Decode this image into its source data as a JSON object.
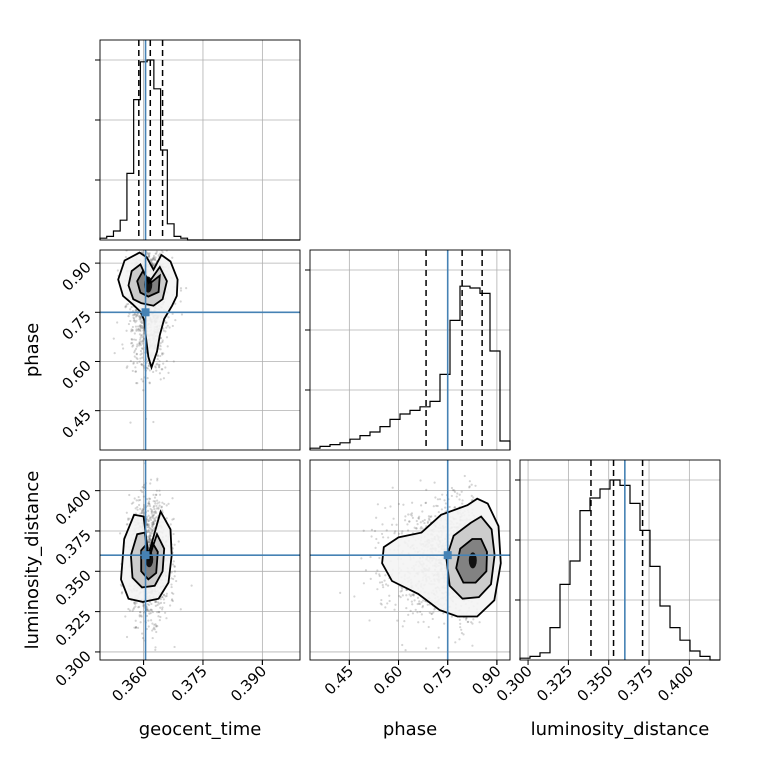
{
  "colors": {
    "truth": "#4682b4",
    "hist": "#000000",
    "grid": "#b0b0b0"
  },
  "chart_data": {
    "type": "corner",
    "grid": true,
    "parameters": [
      "geocent_time",
      "phase",
      "luminosity_distance"
    ],
    "truths": {
      "geocent_time": 0.3605,
      "phase": 0.75,
      "luminosity_distance": 0.36
    },
    "ranges": {
      "geocent_time": [
        0.349,
        0.3995
      ],
      "phase": [
        0.33,
        0.94
      ],
      "luminosity_distance": [
        0.295,
        0.419
      ]
    },
    "ticks": {
      "geocent_time": [
        0.36,
        0.375,
        0.39
      ],
      "phase": [
        0.45,
        0.6,
        0.75,
        0.9
      ],
      "luminosity_distance": [
        0.3,
        0.325,
        0.35,
        0.375,
        0.4
      ]
    },
    "tick_labels": {
      "geocent_time": [
        "0.360",
        "0.375",
        "0.390"
      ],
      "phase": [
        "0.45",
        "0.60",
        "0.75",
        "0.90"
      ],
      "luminosity_distance": [
        "0.300",
        "0.325",
        "0.350",
        "0.375",
        "0.400"
      ]
    },
    "marginal_quantiles": {
      "geocent_time": [
        0.3588,
        0.3617,
        0.3648
      ],
      "phase": [
        0.684,
        0.794,
        0.855
      ],
      "luminosity_distance": [
        0.339,
        0.353,
        0.371
      ]
    },
    "histograms": {
      "geocent_time": {
        "edges": [
          0.349,
          0.3507,
          0.3524,
          0.3541,
          0.3558,
          0.3575,
          0.3592,
          0.3609,
          0.3626,
          0.3643,
          0.366,
          0.3677,
          0.3694,
          0.3711,
          0.3728,
          0.3745,
          0.3762,
          0.3995
        ],
        "counts": [
          0.01,
          0.02,
          0.05,
          0.11,
          0.37,
          0.78,
          0.99,
          1.0,
          0.84,
          0.5,
          0.09,
          0.02,
          0.01,
          0.0,
          0.0,
          0.0,
          0.0
        ]
      },
      "phase": {
        "edges": [
          0.33,
          0.3605,
          0.391,
          0.4215,
          0.452,
          0.4825,
          0.513,
          0.5435,
          0.574,
          0.6045,
          0.635,
          0.6655,
          0.696,
          0.7265,
          0.757,
          0.7875,
          0.818,
          0.8485,
          0.879,
          0.9095,
          0.94
        ],
        "counts": [
          0.01,
          0.02,
          0.03,
          0.04,
          0.06,
          0.08,
          0.1,
          0.13,
          0.17,
          0.2,
          0.22,
          0.24,
          0.27,
          0.42,
          0.72,
          0.91,
          0.9,
          0.87,
          0.55,
          0.05
        ]
      },
      "luminosity_distance": {
        "edges": [
          0.295,
          0.3012,
          0.3074,
          0.3136,
          0.3198,
          0.326,
          0.3322,
          0.3384,
          0.3446,
          0.3508,
          0.357,
          0.3632,
          0.3694,
          0.3756,
          0.3818,
          0.388,
          0.3942,
          0.4004,
          0.4066,
          0.4128,
          0.419
        ],
        "counts": [
          0.01,
          0.02,
          0.04,
          0.18,
          0.42,
          0.55,
          0.83,
          0.9,
          0.95,
          1.0,
          0.97,
          0.87,
          0.72,
          0.52,
          0.3,
          0.18,
          0.11,
          0.05,
          0.02,
          0.0
        ]
      }
    },
    "joint": [
      {
        "x": "geocent_time",
        "y": "phase",
        "contours": [
          [
            [
              0.3625,
              0.88
            ],
            [
              0.3608,
              0.918
            ],
            [
              0.359,
              0.932
            ],
            [
              0.3552,
              0.908
            ],
            [
              0.3536,
              0.85
            ],
            [
              0.3548,
              0.8
            ],
            [
              0.3572,
              0.775
            ],
            [
              0.3592,
              0.752
            ],
            [
              0.3602,
              0.725
            ],
            [
              0.3605,
              0.685
            ],
            [
              0.3612,
              0.615
            ],
            [
              0.362,
              0.582
            ],
            [
              0.3634,
              0.63
            ],
            [
              0.3641,
              0.68
            ],
            [
              0.3652,
              0.73
            ],
            [
              0.3672,
              0.77
            ],
            [
              0.3684,
              0.8
            ],
            [
              0.3686,
              0.85
            ],
            [
              0.3668,
              0.905
            ],
            [
              0.3645,
              0.925
            ]
          ],
          [
            [
              0.3613,
              0.84
            ],
            [
              0.3592,
              0.896
            ],
            [
              0.357,
              0.876
            ],
            [
              0.3562,
              0.832
            ],
            [
              0.3574,
              0.79
            ],
            [
              0.3594,
              0.778
            ],
            [
              0.3625,
              0.77
            ],
            [
              0.3648,
              0.79
            ],
            [
              0.3659,
              0.845
            ],
            [
              0.3641,
              0.888
            ]
          ],
          [
            [
              0.3618,
              0.84
            ],
            [
              0.3598,
              0.875
            ],
            [
              0.3584,
              0.845
            ],
            [
              0.3592,
              0.81
            ],
            [
              0.3612,
              0.798
            ],
            [
              0.3638,
              0.812
            ],
            [
              0.3641,
              0.862
            ]
          ]
        ]
      },
      {
        "x": "geocent_time",
        "y": "luminosity_distance",
        "contours": [
          [
            [
              0.3612,
              0.36
            ],
            [
              0.36,
              0.384
            ],
            [
              0.3576,
              0.385
            ],
            [
              0.3551,
              0.37
            ],
            [
              0.3543,
              0.345
            ],
            [
              0.3562,
              0.333
            ],
            [
              0.3598,
              0.331
            ],
            [
              0.3638,
              0.333
            ],
            [
              0.3663,
              0.343
            ],
            [
              0.3671,
              0.36
            ],
            [
              0.3668,
              0.376
            ],
            [
              0.3643,
              0.387
            ]
          ],
          [
            [
              0.3612,
              0.357
            ],
            [
              0.3603,
              0.374
            ],
            [
              0.3584,
              0.373
            ],
            [
              0.3568,
              0.36
            ],
            [
              0.3572,
              0.346
            ],
            [
              0.3596,
              0.34
            ],
            [
              0.3628,
              0.341
            ],
            [
              0.3648,
              0.35
            ],
            [
              0.3652,
              0.364
            ],
            [
              0.3634,
              0.373
            ]
          ],
          [
            [
              0.3614,
              0.357
            ],
            [
              0.3608,
              0.367
            ],
            [
              0.3594,
              0.363
            ],
            [
              0.3594,
              0.35
            ],
            [
              0.3612,
              0.345
            ],
            [
              0.3632,
              0.349
            ],
            [
              0.3636,
              0.362
            ],
            [
              0.3624,
              0.367
            ]
          ]
        ]
      },
      {
        "x": "phase",
        "y": "luminosity_distance",
        "contours": [
          [
            [
              0.81,
              0.391
            ],
            [
              0.73,
              0.385
            ],
            [
              0.67,
              0.374
            ],
            [
              0.6,
              0.371
            ],
            [
              0.555,
              0.365
            ],
            [
              0.55,
              0.355
            ],
            [
              0.58,
              0.344
            ],
            [
              0.66,
              0.336
            ],
            [
              0.725,
              0.326
            ],
            [
              0.78,
              0.322
            ],
            [
              0.84,
              0.322
            ],
            [
              0.892,
              0.332
            ],
            [
              0.912,
              0.355
            ],
            [
              0.905,
              0.378
            ],
            [
              0.872,
              0.392
            ],
            [
              0.84,
              0.395
            ]
          ],
          [
            [
              0.82,
              0.38
            ],
            [
              0.768,
              0.372
            ],
            [
              0.746,
              0.358
            ],
            [
              0.756,
              0.341
            ],
            [
              0.795,
              0.333
            ],
            [
              0.845,
              0.334
            ],
            [
              0.882,
              0.342
            ],
            [
              0.893,
              0.36
            ],
            [
              0.884,
              0.376
            ],
            [
              0.852,
              0.384
            ]
          ],
          [
            [
              0.825,
              0.37
            ],
            [
              0.788,
              0.364
            ],
            [
              0.776,
              0.352
            ],
            [
              0.798,
              0.343
            ],
            [
              0.835,
              0.343
            ],
            [
              0.868,
              0.35
            ],
            [
              0.87,
              0.362
            ],
            [
              0.852,
              0.37
            ]
          ]
        ]
      }
    ],
    "scatter_spread": {
      "geocent_time": 0.0025,
      "phase": 0.07,
      "luminosity_distance": 0.018
    }
  }
}
